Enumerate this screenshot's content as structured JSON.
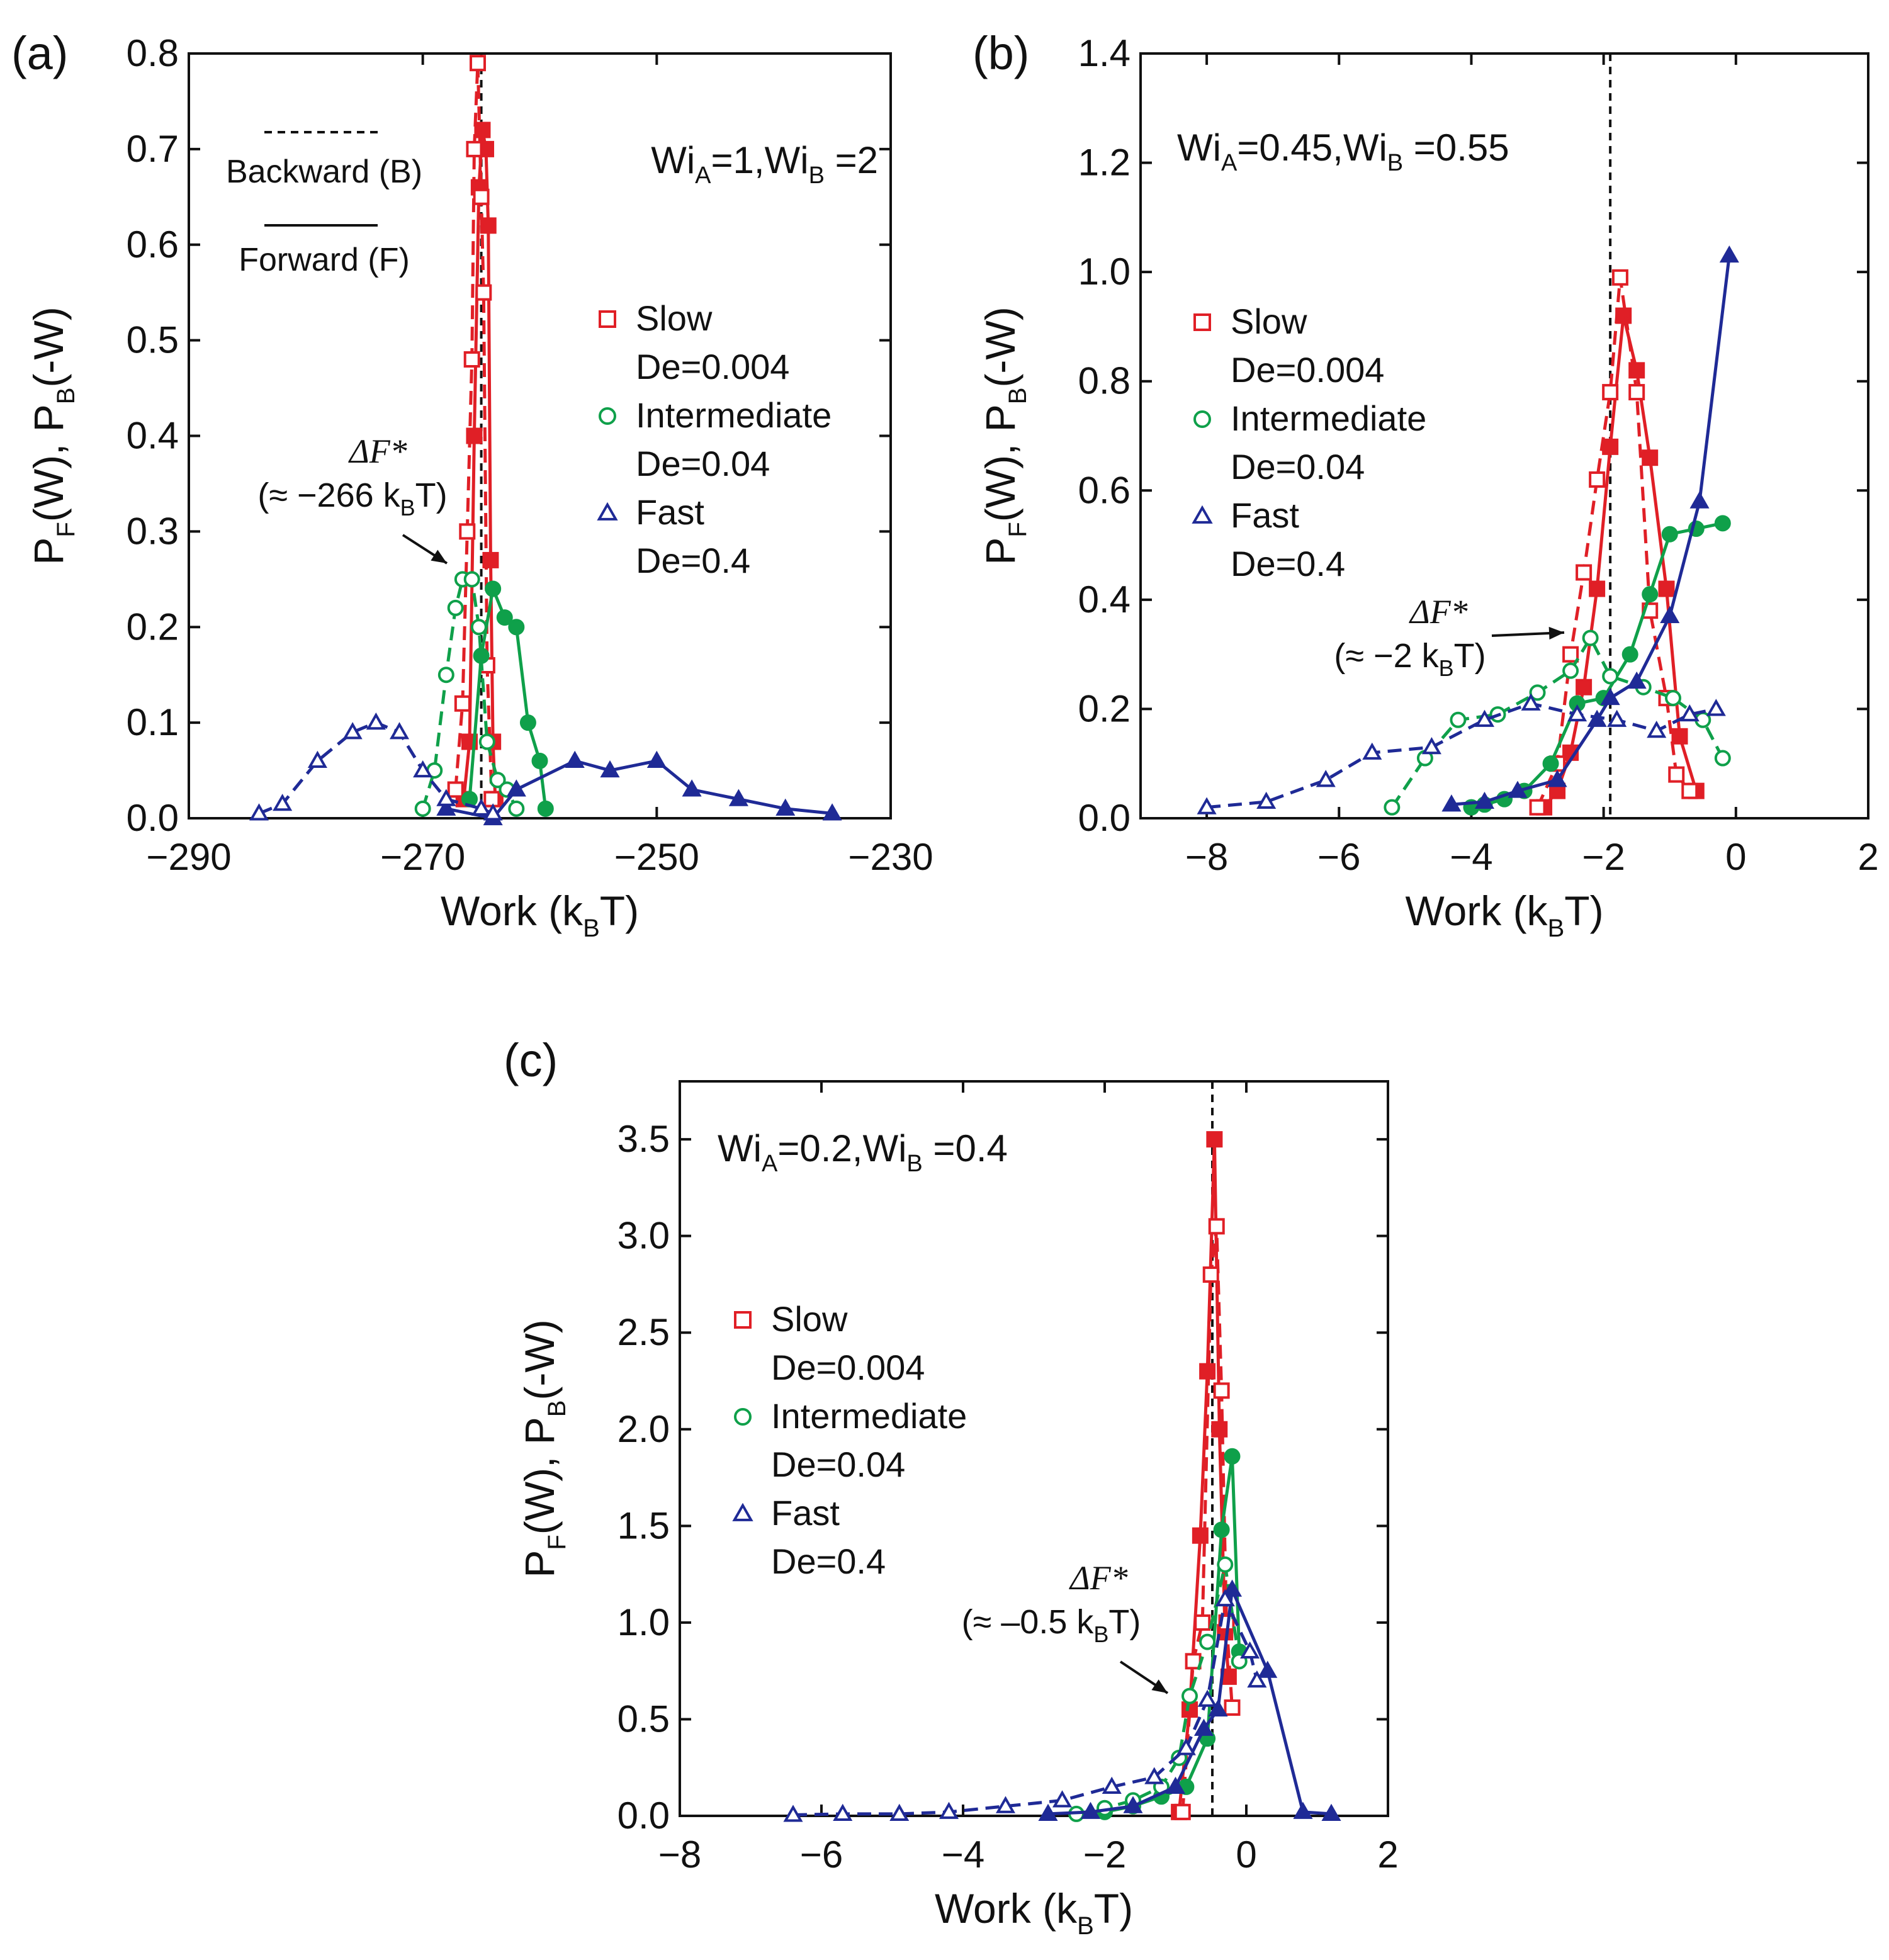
{
  "colors": {
    "slow": "#e01f26",
    "intermediate": "#0fa04a",
    "fast": "#1f2a96",
    "axis": "#111111",
    "free_energy_line": "#111111"
  },
  "chart_data": [
    {
      "type": "line",
      "panel_label": "(a)",
      "xlabel": "Work (k",
      "xlabel_sub": "B",
      "xlabel_tail": "T)",
      "ylabel": "P_F(W), P_B(-W)",
      "xlim": [
        -290,
        -230
      ],
      "ylim": [
        0,
        0.8
      ],
      "xticks": [
        -290,
        -270,
        -250,
        -230
      ],
      "xtick_labels": [
        "−290",
        "−270",
        "−250",
        "−230"
      ],
      "yticks": [
        0,
        0.1,
        0.2,
        0.3,
        0.4,
        0.5,
        0.6,
        0.7,
        0.8
      ],
      "ytick_labels": [
        "0.0",
        "0.1",
        "0.2",
        "0.3",
        "0.4",
        "0.5",
        "0.6",
        "0.7",
        "0.8"
      ],
      "wi": {
        "a_value": "1",
        "b_value": "2"
      },
      "deltaF": -265,
      "deltaF_label": "ΔF*",
      "deltaF_value": "(≈ −266 k",
      "legend": [
        "Slow",
        "De=0.004",
        "Intermediate",
        "De=0.04",
        "Fast",
        "De=0.4"
      ],
      "style_legend": {
        "backward": "Backward (B)",
        "forward": "Forward (F)"
      },
      "series": [
        {
          "name": "Slow forward",
          "group": "slow",
          "dir": "F",
          "x": [
            -266.5,
            -266,
            -265.6,
            -265.2,
            -264.9,
            -264.6,
            -264.4,
            -264.2,
            -264.0,
            -263.8
          ],
          "y": [
            0.02,
            0.08,
            0.4,
            0.66,
            0.72,
            0.7,
            0.62,
            0.27,
            0.08,
            0.02
          ]
        },
        {
          "name": "Slow backward",
          "group": "slow",
          "dir": "B",
          "x": [
            -267.2,
            -266.6,
            -266.2,
            -265.8,
            -265.6,
            -265.3,
            -265.0,
            -264.8,
            -264.5,
            -264.1
          ],
          "y": [
            0.03,
            0.12,
            0.3,
            0.48,
            0.7,
            0.79,
            0.65,
            0.55,
            0.16,
            0.02
          ]
        },
        {
          "name": "Intermediate forward",
          "group": "intermediate",
          "dir": "F",
          "x": [
            -266,
            -265,
            -264,
            -263,
            -262,
            -261,
            -260,
            -259.5
          ],
          "y": [
            0.02,
            0.17,
            0.24,
            0.21,
            0.2,
            0.1,
            0.06,
            0.01
          ]
        },
        {
          "name": "Intermediate backward",
          "group": "intermediate",
          "dir": "B",
          "x": [
            -270,
            -269,
            -268,
            -267.2,
            -266.6,
            -265.8,
            -265.2,
            -264.5,
            -263.6,
            -262.8,
            -262
          ],
          "y": [
            0.01,
            0.05,
            0.15,
            0.22,
            0.25,
            0.25,
            0.2,
            0.08,
            0.04,
            0.03,
            0.01
          ]
        },
        {
          "name": "Fast forward",
          "group": "fast",
          "dir": "F",
          "x": [
            -268,
            -264,
            -262,
            -257,
            -254,
            -250,
            -247,
            -243,
            -239,
            -235
          ],
          "y": [
            0.01,
            0.0,
            0.03,
            0.06,
            0.05,
            0.06,
            0.03,
            0.02,
            0.01,
            0.005
          ]
        },
        {
          "name": "Fast backward",
          "group": "fast",
          "dir": "B",
          "x": [
            -284,
            -282,
            -279,
            -276,
            -274,
            -272,
            -270,
            -268,
            -265,
            -264
          ],
          "y": [
            0.005,
            0.015,
            0.06,
            0.09,
            0.1,
            0.09,
            0.05,
            0.02,
            0.01,
            0.005
          ]
        }
      ]
    },
    {
      "type": "line",
      "panel_label": "(b)",
      "xlabel": "Work (k",
      "xlabel_sub": "B",
      "xlabel_tail": "T)",
      "ylabel": "P_F(W), P_B(-W)",
      "xlim": [
        -9,
        2
      ],
      "ylim": [
        0,
        1.4
      ],
      "xticks": [
        -8,
        -6,
        -4,
        -2,
        0,
        2
      ],
      "xtick_labels": [
        "−8",
        "−6",
        "−4",
        "−2",
        "0",
        "2"
      ],
      "yticks": [
        0,
        0.2,
        0.4,
        0.6,
        0.8,
        1.0,
        1.2,
        1.4
      ],
      "ytick_labels": [
        "0.0",
        "0.2",
        "0.4",
        "0.6",
        "0.8",
        "1.0",
        "1.2",
        "1.4"
      ],
      "wi": {
        "a_value": "0.45",
        "b_value": "0.55"
      },
      "deltaF": -1.9,
      "deltaF_label": "ΔF*",
      "deltaF_value": "(≈ −2 k",
      "legend": [
        "Slow",
        "De=0.004",
        "Intermediate",
        "De=0.04",
        "Fast",
        "De=0.4"
      ],
      "series": [
        {
          "name": "Slow forward",
          "group": "slow",
          "dir": "F",
          "x": [
            -2.9,
            -2.7,
            -2.5,
            -2.3,
            -2.1,
            -1.9,
            -1.7,
            -1.5,
            -1.3,
            -1.05,
            -0.85,
            -0.6
          ],
          "y": [
            0.02,
            0.05,
            0.12,
            0.24,
            0.42,
            0.68,
            0.92,
            0.82,
            0.66,
            0.42,
            0.15,
            0.05
          ]
        },
        {
          "name": "Slow backward",
          "group": "slow",
          "dir": "B",
          "x": [
            -3.0,
            -2.7,
            -2.5,
            -2.3,
            -2.1,
            -1.9,
            -1.75,
            -1.5,
            -1.3,
            -1.05,
            -0.9,
            -0.7
          ],
          "y": [
            0.02,
            0.1,
            0.3,
            0.45,
            0.62,
            0.78,
            0.99,
            0.78,
            0.38,
            0.22,
            0.08,
            0.05
          ]
        },
        {
          "name": "Intermediate forward",
          "group": "intermediate",
          "dir": "F",
          "x": [
            -4.0,
            -3.8,
            -3.5,
            -3.2,
            -2.8,
            -2.4,
            -2.0,
            -1.6,
            -1.3,
            -1.0,
            -0.6,
            -0.2
          ],
          "y": [
            0.02,
            0.025,
            0.035,
            0.05,
            0.1,
            0.21,
            0.22,
            0.3,
            0.41,
            0.52,
            0.53,
            0.54
          ]
        },
        {
          "name": "Intermediate backward",
          "group": "intermediate",
          "dir": "B",
          "x": [
            -5.2,
            -4.7,
            -4.2,
            -3.6,
            -3.0,
            -2.5,
            -2.2,
            -1.9,
            -1.4,
            -0.95,
            -0.5,
            -0.2
          ],
          "y": [
            0.02,
            0.11,
            0.18,
            0.19,
            0.23,
            0.27,
            0.33,
            0.26,
            0.24,
            0.22,
            0.18,
            0.11
          ]
        },
        {
          "name": "Fast forward",
          "group": "fast",
          "dir": "F",
          "x": [
            -4.3,
            -3.8,
            -3.3,
            -2.7,
            -2.1,
            -1.9,
            -1.5,
            -1.0,
            -0.55,
            -0.1
          ],
          "y": [
            0.025,
            0.03,
            0.05,
            0.07,
            0.18,
            0.22,
            0.25,
            0.37,
            0.58,
            1.03
          ]
        },
        {
          "name": "Fast backward",
          "group": "fast",
          "dir": "B",
          "x": [
            -8.0,
            -7.1,
            -6.2,
            -5.5,
            -4.6,
            -3.8,
            -3.1,
            -2.4,
            -1.8,
            -1.2,
            -0.7,
            -0.3
          ],
          "y": [
            0.02,
            0.03,
            0.07,
            0.12,
            0.13,
            0.18,
            0.21,
            0.19,
            0.18,
            0.16,
            0.19,
            0.2
          ]
        }
      ]
    },
    {
      "type": "line",
      "panel_label": "(c)",
      "xlabel": "Work (k",
      "xlabel_sub": "B",
      "xlabel_tail": "T)",
      "ylabel": "P_F(W), P_B(-W)",
      "xlim": [
        -8,
        2
      ],
      "ylim": [
        0,
        3.8
      ],
      "xticks": [
        -8,
        -6,
        -4,
        -2,
        0,
        2
      ],
      "xtick_labels": [
        "−8",
        "−6",
        "−4",
        "−2",
        "0",
        "2"
      ],
      "yticks": [
        0,
        0.5,
        1.0,
        1.5,
        2.0,
        2.5,
        3.0,
        3.5
      ],
      "ytick_labels": [
        "0.0",
        "0.5",
        "1.0",
        "1.5",
        "2.0",
        "2.5",
        "3.0",
        "3.5"
      ],
      "wi": {
        "a_value": "0.2",
        "b_value": "0.4"
      },
      "deltaF": -0.48,
      "deltaF_label": "ΔF*",
      "deltaF_value": "(≈ –0.5 k",
      "legend": [
        "Slow",
        "De=0.004",
        "Intermediate",
        "De=0.04",
        "Fast",
        "De=0.4"
      ],
      "series": [
        {
          "name": "Slow forward",
          "group": "slow",
          "dir": "F",
          "x": [
            -0.95,
            -0.8,
            -0.65,
            -0.55,
            -0.45,
            -0.38,
            -0.3,
            -0.25
          ],
          "y": [
            0.02,
            0.55,
            1.45,
            2.3,
            3.5,
            2.0,
            0.95,
            0.72
          ]
        },
        {
          "name": "Slow backward",
          "group": "slow",
          "dir": "B",
          "x": [
            -0.9,
            -0.75,
            -0.62,
            -0.5,
            -0.42,
            -0.35,
            -0.28,
            -0.2
          ],
          "y": [
            0.02,
            0.8,
            1.0,
            2.8,
            3.05,
            2.2,
            1.0,
            0.56
          ]
        },
        {
          "name": "Intermediate forward",
          "group": "intermediate",
          "dir": "F",
          "x": [
            -2.0,
            -1.6,
            -1.2,
            -0.85,
            -0.55,
            -0.35,
            -0.2,
            -0.1
          ],
          "y": [
            0.02,
            0.05,
            0.1,
            0.15,
            0.4,
            1.48,
            1.86,
            0.85
          ]
        },
        {
          "name": "Intermediate backward",
          "group": "intermediate",
          "dir": "B",
          "x": [
            -2.4,
            -2.0,
            -1.6,
            -1.2,
            -0.95,
            -0.8,
            -0.55,
            -0.3,
            -0.1
          ],
          "y": [
            0.01,
            0.04,
            0.08,
            0.15,
            0.3,
            0.62,
            0.9,
            1.3,
            0.8
          ]
        },
        {
          "name": "Fast forward",
          "group": "fast",
          "dir": "F",
          "x": [
            -2.8,
            -2.2,
            -1.6,
            -1.0,
            -0.6,
            -0.4,
            -0.2,
            0.3,
            0.8,
            1.2
          ],
          "y": [
            0.01,
            0.02,
            0.05,
            0.15,
            0.45,
            0.55,
            1.17,
            0.75,
            0.02,
            0.01
          ]
        },
        {
          "name": "Fast backward",
          "group": "fast",
          "dir": "B",
          "x": [
            -6.4,
            -5.7,
            -4.9,
            -4.2,
            -3.4,
            -2.6,
            -1.9,
            -1.3,
            -0.85,
            -0.55,
            -0.3,
            0.05,
            0.15
          ],
          "y": [
            0.005,
            0.01,
            0.01,
            0.02,
            0.05,
            0.08,
            0.15,
            0.2,
            0.35,
            0.6,
            1.12,
            0.85,
            0.7
          ]
        }
      ]
    }
  ]
}
